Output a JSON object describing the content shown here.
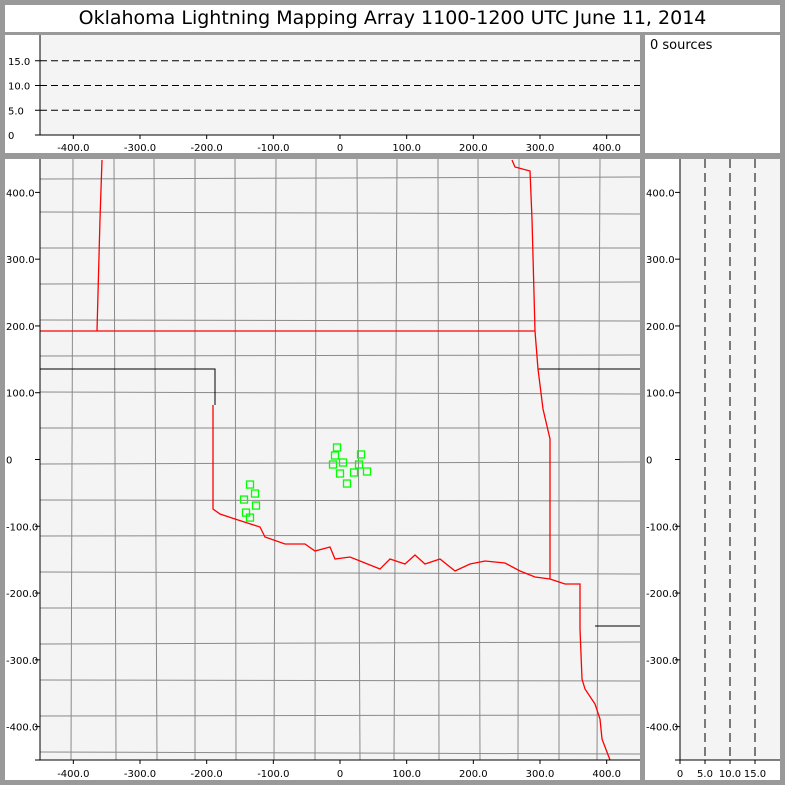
{
  "title": "Oklahoma Lightning Mapping Array   1100-1200 UTC  June 11, 2014",
  "sources_label": "0 sources",
  "colors": {
    "background": "#999999",
    "plot_bg": "#f4f4f4",
    "state_border": "#ff0000",
    "county": "#888888",
    "station": "#00ff00"
  },
  "chart_data": [
    {
      "type": "line",
      "panel": "altitude-vs-east-west",
      "xlim": [
        -450,
        450
      ],
      "ylim": [
        0,
        20
      ],
      "x_ticks": [
        "-400.0",
        "-300.0",
        "-200.0",
        "-100.0",
        "0",
        "100.0",
        "200.0",
        "300.0",
        "400.0"
      ],
      "x_tick_values": [
        -400,
        -300,
        -200,
        -100,
        0,
        100,
        200,
        300,
        400
      ],
      "y_ticks": [
        "0",
        "5.0",
        "10.0",
        "15.0"
      ],
      "y_tick_values": [
        0,
        5,
        10,
        15
      ],
      "grid": "dashed at 5, 10, 15",
      "series": []
    },
    {
      "type": "scatter",
      "panel": "plan-view-map",
      "xlim": [
        -450,
        450
      ],
      "ylim": [
        -450,
        450
      ],
      "x_ticks": [
        "-400.0",
        "-300.0",
        "-200.0",
        "-100.0",
        "0",
        "100.0",
        "200.0",
        "300.0",
        "400.0"
      ],
      "x_tick_values": [
        -400,
        -300,
        -200,
        -100,
        0,
        100,
        200,
        300,
        400
      ],
      "y_ticks": [
        "400.0",
        "300.0",
        "200.0",
        "100.0",
        "0",
        "-100.0",
        "-200.0",
        "-300.0",
        "-400.0"
      ],
      "y_tick_values": [
        400,
        300,
        200,
        100,
        0,
        -100,
        -200,
        -300,
        -400
      ],
      "stations": [
        [
          -4.5,
          18
        ],
        [
          -7.5,
          6
        ],
        [
          -10.5,
          -7.5
        ],
        [
          4.5,
          -4.5
        ],
        [
          0,
          -21
        ],
        [
          10.5,
          -36
        ],
        [
          21,
          -19.5
        ],
        [
          28.5,
          -7.5
        ],
        [
          31.5,
          7.5
        ],
        [
          40.5,
          -18
        ],
        [
          -135,
          -37.5
        ],
        [
          -127.5,
          -51
        ],
        [
          -144,
          -60
        ],
        [
          -126,
          -69
        ],
        [
          -141,
          -79.5
        ],
        [
          -135,
          -87
        ]
      ]
    },
    {
      "type": "line",
      "panel": "north-south-vs-altitude",
      "xlim": [
        0,
        20
      ],
      "ylim": [
        -450,
        450
      ],
      "x_ticks": [
        "0",
        "5.0",
        "10.0",
        "15.0"
      ],
      "x_tick_values": [
        0,
        5,
        10,
        15
      ],
      "y_ticks": [
        "400.0",
        "300.0",
        "200.0",
        "100.0",
        "0",
        "-100.0",
        "-200.0",
        "-300.0",
        "-400.0"
      ],
      "y_tick_values": [
        400,
        300,
        200,
        100,
        0,
        -100,
        -200,
        -300,
        -400
      ],
      "grid": "dashed at 5, 10, 15",
      "series": []
    }
  ]
}
